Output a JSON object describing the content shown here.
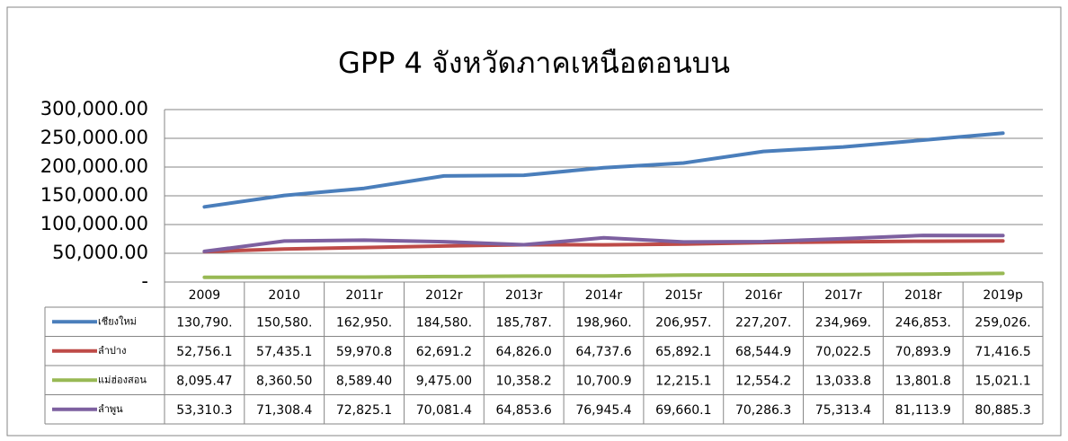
{
  "chart_data": {
    "type": "line",
    "title": "GPP 4 จังหวัดภาคเหนือตอนบน",
    "categories": [
      "2009",
      "2010",
      "2011r",
      "2012r",
      "2013r",
      "2014r",
      "2015r",
      "2016r",
      "2017r",
      "2018r",
      "2019p"
    ],
    "series": [
      {
        "name": "เชียงใหม่",
        "color": "#4a7ebb",
        "values": [
          130790,
          150580,
          162950,
          184580,
          185787,
          198960,
          206957,
          227207,
          234969,
          246853,
          259026
        ],
        "value_labels": [
          "130,790.",
          "150,580.",
          "162,950.",
          "184,580.",
          "185,787.",
          "198,960.",
          "206,957.",
          "227,207.",
          "234,969.",
          "246,853.",
          "259,026."
        ]
      },
      {
        "name": "ลำปาง",
        "color": "#be4b48",
        "values": [
          52756.1,
          57435.1,
          59970.8,
          62691.2,
          64826.0,
          64737.6,
          65892.1,
          68544.9,
          70022.5,
          70893.9,
          71416.5
        ],
        "value_labels": [
          "52,756.1",
          "57,435.1",
          "59,970.8",
          "62,691.2",
          "64,826.0",
          "64,737.6",
          "65,892.1",
          "68,544.9",
          "70,022.5",
          "70,893.9",
          "71,416.5"
        ]
      },
      {
        "name": "แม่ฮ่องสอน",
        "color": "#98b954",
        "values": [
          8095.47,
          8360.5,
          8589.4,
          9475.0,
          10358.2,
          10700.9,
          12215.1,
          12554.2,
          13033.8,
          13801.8,
          15021.1
        ],
        "value_labels": [
          "8,095.47",
          "8,360.50",
          "8,589.40",
          "9,475.00",
          "10,358.2",
          "10,700.9",
          "12,215.1",
          "12,554.2",
          "13,033.8",
          "13,801.8",
          "15,021.1"
        ]
      },
      {
        "name": "ลำพูน",
        "color": "#7d60a0",
        "values": [
          53310.3,
          71308.4,
          72825.1,
          70081.4,
          64853.6,
          76945.4,
          69660.1,
          70286.3,
          75313.4,
          81113.9,
          80885.3
        ],
        "value_labels": [
          "53,310.3",
          "71,308.4",
          "72,825.1",
          "70,081.4",
          "64,853.6",
          "76,945.4",
          "69,660.1",
          "70,286.3",
          "75,313.4",
          "81,113.9",
          "80,885.3"
        ]
      }
    ],
    "ylim": [
      0,
      300000
    ],
    "yticks": [
      {
        "value": 0,
        "label": "-"
      },
      {
        "value": 50000,
        "label": "50,000.00"
      },
      {
        "value": 100000,
        "label": "100,000.00"
      },
      {
        "value": 150000,
        "label": "150,000.00"
      },
      {
        "value": 200000,
        "label": "200,000.00"
      },
      {
        "value": 250000,
        "label": "250,000.00"
      },
      {
        "value": 300000,
        "label": "300,000.00"
      }
    ],
    "grid": true
  }
}
